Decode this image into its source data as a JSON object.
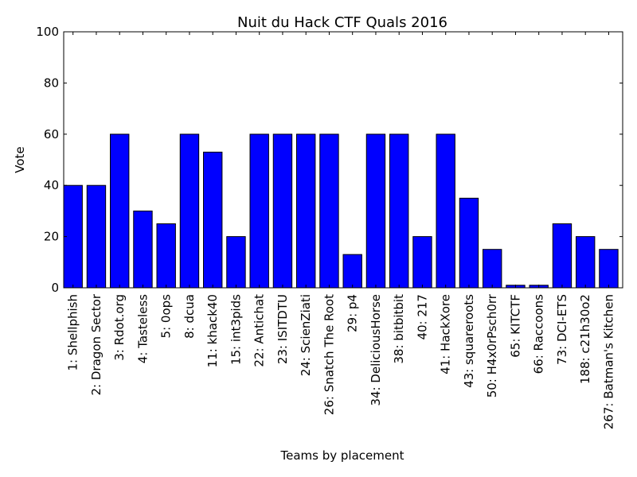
{
  "chart_data": {
    "type": "bar",
    "title": "Nuit du Hack CTF Quals 2016",
    "xlabel": "Teams by placement",
    "ylabel": "Vote",
    "ylim": [
      0,
      100
    ],
    "yticks": [
      "0",
      "20",
      "40",
      "60",
      "80",
      "100"
    ],
    "grid": false,
    "legend": "none",
    "bar_color": "#0000ff",
    "edge_color": "#000000",
    "categories": [
      "1: Shellphish",
      "2: Dragon Sector",
      "3: Rdot.org",
      "4: Tasteless",
      "5: 0ops",
      "8: dcua",
      "11: khack40",
      "15: int3pids",
      "22: Antichat",
      "23: ISITDTU",
      "24: ScienZiati",
      "26: Snatch The Root",
      "29: p4",
      "34: DeliciousHorse",
      "38: bitbitbit",
      "40: 217",
      "41: HackXore",
      "43: squareroots",
      "50: H4x0rPsch0rr",
      "65: KITCTF",
      "66: Raccoons",
      "73: DCI-ETS",
      "188: c21h30o2",
      "267: Batman's Kitchen"
    ],
    "values": [
      40,
      40,
      60,
      30,
      25,
      60,
      53,
      20,
      60,
      60,
      60,
      60,
      13,
      60,
      60,
      20,
      60,
      35,
      15,
      1,
      1,
      25,
      20,
      15
    ]
  }
}
